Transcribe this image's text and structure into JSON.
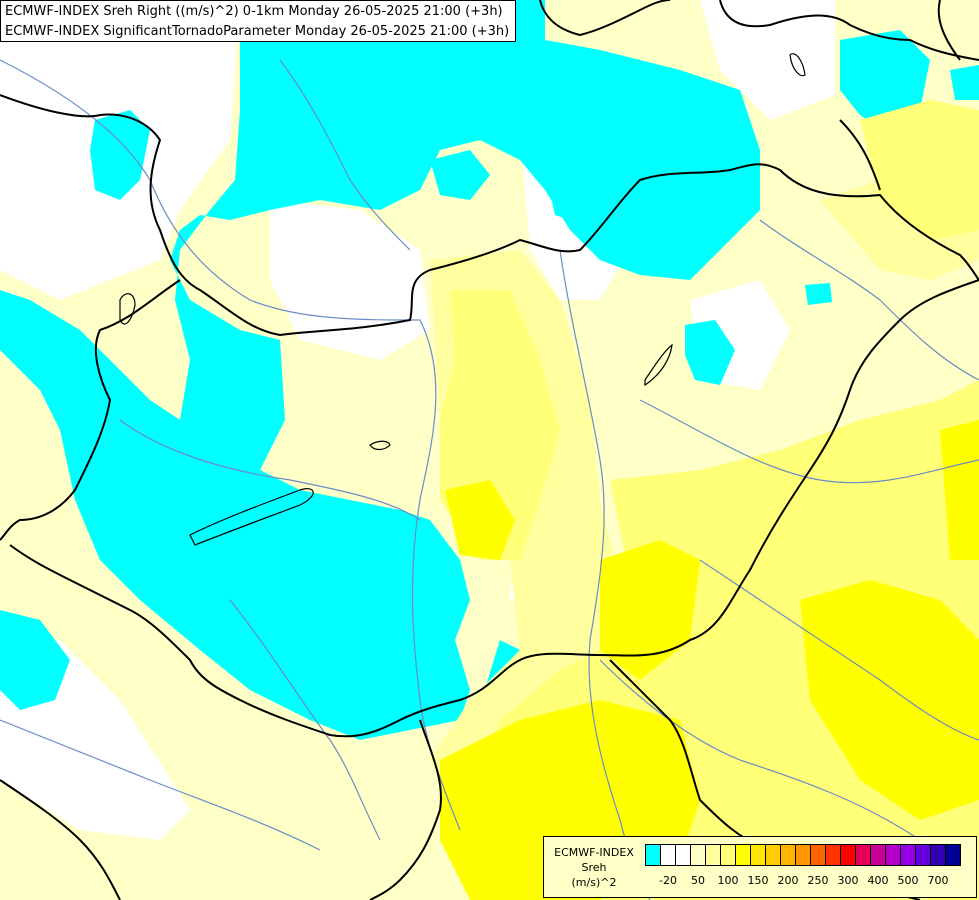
{
  "header": {
    "line1": "ECMWF-INDEX Sreh Right ((m/s)^2) 0-1km Monday 26-05-2025 21:00 (+3h)",
    "line2": "ECMWF-INDEX SignificantTornadoParameter Monday 26-05-2025 21:00 (+3h)"
  },
  "legend": {
    "caption_line1": "ECMWF-INDEX",
    "caption_line2": "Sreh",
    "caption_line3": "(m/s)^2",
    "colors": [
      "#00ffff",
      "#ffffff",
      "#ffffff",
      "#ffffc8",
      "#ffffa0",
      "#ffff78",
      "#ffff00",
      "#ffe600",
      "#ffcd00",
      "#ffb400",
      "#ff9600",
      "#ff6400",
      "#ff3200",
      "#ff0000",
      "#e6005a",
      "#c80096",
      "#b400c8",
      "#9600e6",
      "#6400dc",
      "#3200b4",
      "#000096"
    ],
    "ticks": [
      {
        "label": "-20",
        "index": 1
      },
      {
        "label": "50",
        "index": 3
      },
      {
        "label": "100",
        "index": 5
      },
      {
        "label": "150",
        "index": 7
      },
      {
        "label": "200",
        "index": 9
      },
      {
        "label": "250",
        "index": 11
      },
      {
        "label": "300",
        "index": 13
      },
      {
        "label": "400",
        "index": 15
      },
      {
        "label": "500",
        "index": 17
      },
      {
        "label": "700",
        "index": 19
      }
    ]
  },
  "map_colors": {
    "cyan": "#00ffff",
    "pale_yellow": "#ffffc8",
    "light_yellow": "#ffffa0",
    "yellow": "#ffff78",
    "bright_yellow": "#ffff00",
    "border": "#000000",
    "river": "#6b8cc4"
  }
}
